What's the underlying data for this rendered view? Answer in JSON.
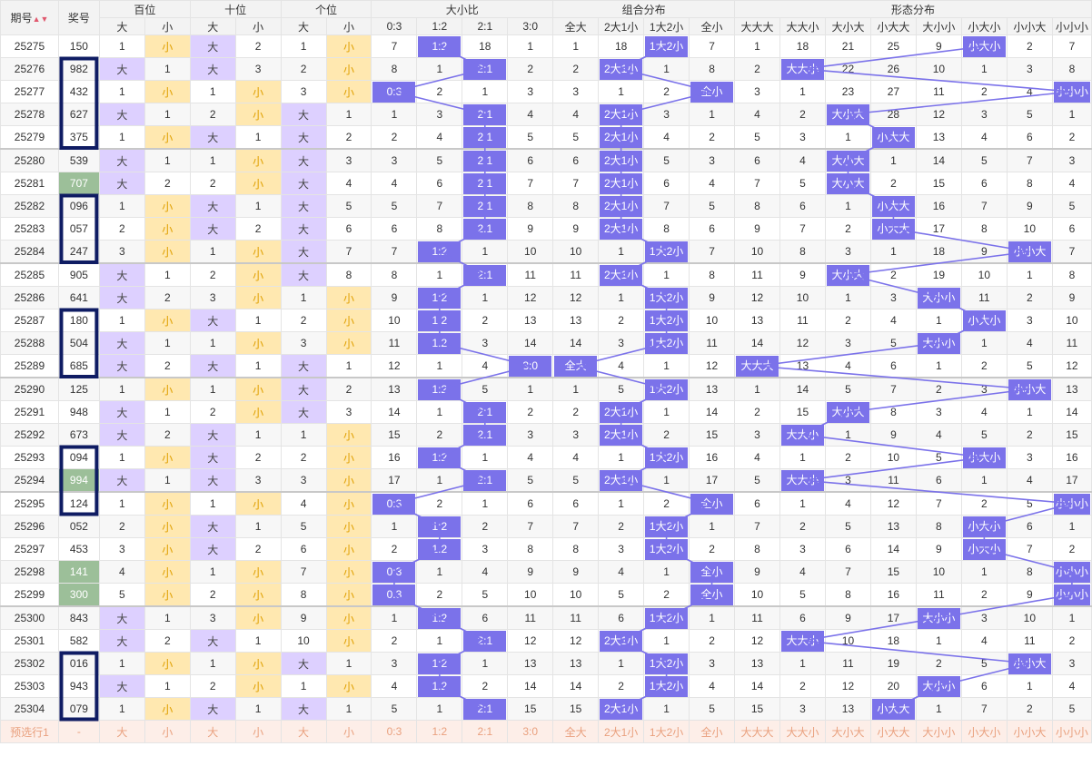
{
  "header": {
    "issue": "期号",
    "prize": "奖号",
    "hundreds": "百位",
    "tens": "十位",
    "units": "个位",
    "size_ratio": "大小比",
    "combo": "组合分布",
    "shape": "形态分布",
    "big": "大",
    "small": "小",
    "ratios": [
      "0:3",
      "1:2",
      "2:1",
      "3:0"
    ],
    "combos": [
      "全大",
      "2大1小",
      "1大2小",
      "全小"
    ],
    "shapes": [
      "大大大",
      "大大小",
      "大小大",
      "小大大",
      "大小小",
      "小大小",
      "小小大",
      "小小小"
    ]
  },
  "rows": [
    {
      "issue": "25275",
      "prize": "150",
      "h": "1",
      "t": "大",
      "u": "1",
      "ratio": "1:2",
      "combo": "1大2小",
      "shape": "小大小",
      "vals": [
        [
          1,
          "小"
        ],
        [
          "大",
          2
        ],
        [
          1,
          "小"
        ],
        [
          7,
          "1:2",
          18,
          1
        ],
        [
          1,
          18,
          "1大2小",
          7
        ],
        [
          1,
          18,
          21,
          25,
          9,
          "小大小",
          2,
          7
        ]
      ]
    },
    {
      "issue": "25276",
      "prize": "982",
      "vals": [
        [
          "大",
          1
        ],
        [
          "大",
          3
        ],
        [
          2,
          "小"
        ],
        [
          8,
          1,
          "2:1",
          2
        ],
        [
          2,
          "2大1小",
          1,
          8
        ],
        [
          2,
          "大大小",
          22,
          26,
          10,
          1,
          3,
          8
        ]
      ]
    },
    {
      "issue": "25277",
      "prize": "432",
      "vals": [
        [
          1,
          "小"
        ],
        [
          1,
          "小"
        ],
        [
          3,
          "小"
        ],
        [
          "0:3",
          2,
          1,
          3
        ],
        [
          3,
          1,
          2,
          "全小"
        ],
        [
          3,
          1,
          23,
          27,
          11,
          2,
          4,
          "小小小"
        ]
      ]
    },
    {
      "issue": "25278",
      "prize": "627",
      "vals": [
        [
          "大",
          1
        ],
        [
          2,
          "小"
        ],
        [
          "大",
          1
        ],
        [
          1,
          3,
          "2:1",
          4
        ],
        [
          4,
          "2大1小",
          3,
          1
        ],
        [
          4,
          2,
          "大小大",
          28,
          12,
          3,
          5,
          1
        ]
      ]
    },
    {
      "issue": "25279",
      "prize": "375",
      "vals": [
        [
          1,
          "小"
        ],
        [
          "大",
          1
        ],
        [
          "大",
          2
        ],
        [
          2,
          4,
          "2:1",
          5
        ],
        [
          5,
          "2大1小",
          4,
          2
        ],
        [
          5,
          3,
          1,
          "小大大",
          13,
          4,
          6,
          2
        ]
      ]
    },
    {
      "issue": "25280",
      "prize": "539",
      "vals": [
        [
          "大",
          1
        ],
        [
          1,
          "小"
        ],
        [
          "大",
          3
        ],
        [
          3,
          5,
          "2:1",
          6
        ],
        [
          6,
          "2大1小",
          5,
          3
        ],
        [
          6,
          4,
          "大小大",
          1,
          14,
          5,
          7,
          3
        ]
      ]
    },
    {
      "issue": "25281",
      "prize": "707",
      "vals": [
        [
          "大",
          2
        ],
        [
          2,
          "小"
        ],
        [
          "大",
          4
        ],
        [
          4,
          6,
          "2:1",
          7
        ],
        [
          7,
          "2大1小",
          6,
          4
        ],
        [
          7,
          5,
          "大小大",
          2,
          15,
          6,
          8,
          4
        ]
      ]
    },
    {
      "issue": "25282",
      "prize": "096",
      "vals": [
        [
          1,
          "小"
        ],
        [
          "大",
          1
        ],
        [
          "大",
          5
        ],
        [
          5,
          7,
          "2:1",
          8
        ],
        [
          8,
          "2大1小",
          7,
          5
        ],
        [
          8,
          6,
          1,
          "小大大",
          16,
          7,
          9,
          5
        ]
      ]
    },
    {
      "issue": "25283",
      "prize": "057",
      "vals": [
        [
          2,
          "小"
        ],
        [
          "大",
          2
        ],
        [
          "大",
          6
        ],
        [
          6,
          8,
          "2:1",
          9
        ],
        [
          9,
          "2大1小",
          8,
          6
        ],
        [
          9,
          7,
          2,
          "小大大",
          17,
          8,
          10,
          6
        ]
      ]
    },
    {
      "issue": "25284",
      "prize": "247",
      "vals": [
        [
          3,
          "小"
        ],
        [
          1,
          "小"
        ],
        [
          "大",
          7
        ],
        [
          7,
          "1:2",
          1,
          10
        ],
        [
          10,
          1,
          "1大2小",
          7
        ],
        [
          10,
          8,
          3,
          1,
          18,
          9,
          "小小大",
          7
        ]
      ]
    },
    {
      "issue": "25285",
      "prize": "905",
      "vals": [
        [
          "大",
          1
        ],
        [
          2,
          "小"
        ],
        [
          "大",
          8
        ],
        [
          8,
          1,
          "2:1",
          11
        ],
        [
          11,
          "2大1小",
          1,
          8
        ],
        [
          11,
          9,
          "大小大",
          2,
          19,
          10,
          1,
          8
        ]
      ]
    },
    {
      "issue": "25286",
      "prize": "641",
      "vals": [
        [
          "大",
          2
        ],
        [
          3,
          "小"
        ],
        [
          1,
          "小"
        ],
        [
          9,
          "1:2",
          1,
          12
        ],
        [
          12,
          1,
          "1大2小",
          9
        ],
        [
          12,
          10,
          1,
          3,
          "大小小",
          11,
          2,
          9
        ]
      ]
    },
    {
      "issue": "25287",
      "prize": "180",
      "vals": [
        [
          1,
          "小"
        ],
        [
          "大",
          1
        ],
        [
          2,
          "小"
        ],
        [
          10,
          "1:2",
          2,
          13
        ],
        [
          13,
          2,
          "1大2小",
          10
        ],
        [
          13,
          11,
          2,
          4,
          1,
          "小大小",
          3,
          10
        ]
      ]
    },
    {
      "issue": "25288",
      "prize": "504",
      "vals": [
        [
          "大",
          1
        ],
        [
          1,
          "小"
        ],
        [
          3,
          "小"
        ],
        [
          11,
          "1:2",
          3,
          14
        ],
        [
          14,
          3,
          "1大2小",
          11
        ],
        [
          14,
          12,
          3,
          5,
          "大小小",
          1,
          4,
          11
        ]
      ]
    },
    {
      "issue": "25289",
      "prize": "685",
      "vals": [
        [
          "大",
          2
        ],
        [
          "大",
          1
        ],
        [
          "大",
          1
        ],
        [
          12,
          1,
          4,
          "3:0"
        ],
        [
          "全大",
          4,
          1,
          12
        ],
        [
          "大大大",
          13,
          4,
          6,
          1,
          2,
          5,
          12
        ]
      ]
    },
    {
      "issue": "25290",
      "prize": "125",
      "vals": [
        [
          1,
          "小"
        ],
        [
          1,
          "小"
        ],
        [
          "大",
          2
        ],
        [
          13,
          "1:2",
          5,
          1
        ],
        [
          1,
          5,
          "1大2小",
          13
        ],
        [
          1,
          14,
          5,
          7,
          2,
          3,
          "小小大",
          13
        ]
      ]
    },
    {
      "issue": "25291",
      "prize": "948",
      "vals": [
        [
          "大",
          1
        ],
        [
          2,
          "小"
        ],
        [
          "大",
          3
        ],
        [
          14,
          1,
          "2:1",
          2
        ],
        [
          2,
          "2大1小",
          1,
          14
        ],
        [
          2,
          15,
          "大小大",
          8,
          3,
          4,
          1,
          14
        ]
      ]
    },
    {
      "issue": "25292",
      "prize": "673",
      "vals": [
        [
          "大",
          2
        ],
        [
          "大",
          1
        ],
        [
          1,
          "小"
        ],
        [
          15,
          2,
          "2:1",
          3
        ],
        [
          3,
          "2大1小",
          2,
          15
        ],
        [
          3,
          "大大小",
          1,
          9,
          4,
          5,
          2,
          15
        ]
      ]
    },
    {
      "issue": "25293",
      "prize": "094",
      "vals": [
        [
          1,
          "小"
        ],
        [
          "大",
          2
        ],
        [
          2,
          "小"
        ],
        [
          16,
          "1:2",
          1,
          4
        ],
        [
          4,
          1,
          "1大2小",
          16
        ],
        [
          4,
          1,
          2,
          10,
          5,
          "小大小",
          3,
          16
        ]
      ]
    },
    {
      "issue": "25294",
      "prize": "994",
      "vals": [
        [
          "大",
          1
        ],
        [
          "大",
          3
        ],
        [
          3,
          "小"
        ],
        [
          17,
          1,
          "2:1",
          5
        ],
        [
          5,
          "2大1小",
          1,
          17
        ],
        [
          5,
          "大大小",
          3,
          11,
          6,
          1,
          4,
          17
        ]
      ]
    },
    {
      "issue": "25295",
      "prize": "124",
      "vals": [
        [
          1,
          "小"
        ],
        [
          1,
          "小"
        ],
        [
          4,
          "小"
        ],
        [
          "0:3",
          2,
          1,
          6
        ],
        [
          6,
          1,
          2,
          "全小"
        ],
        [
          6,
          1,
          4,
          12,
          7,
          2,
          5,
          "小小小"
        ]
      ]
    },
    {
      "issue": "25296",
      "prize": "052",
      "vals": [
        [
          2,
          "小"
        ],
        [
          "大",
          1
        ],
        [
          5,
          "小"
        ],
        [
          1,
          "1:2",
          2,
          7
        ],
        [
          7,
          2,
          "1大2小",
          1
        ],
        [
          7,
          2,
          5,
          13,
          8,
          "小大小",
          6,
          1
        ]
      ]
    },
    {
      "issue": "25297",
      "prize": "453",
      "vals": [
        [
          3,
          "小"
        ],
        [
          "大",
          2
        ],
        [
          6,
          "小"
        ],
        [
          2,
          "1:2",
          3,
          8
        ],
        [
          8,
          3,
          "1大2小",
          2
        ],
        [
          8,
          3,
          6,
          14,
          9,
          "小大小",
          7,
          2
        ]
      ]
    },
    {
      "issue": "25298",
      "prize": "141",
      "vals": [
        [
          4,
          "小"
        ],
        [
          1,
          "小"
        ],
        [
          7,
          "小"
        ],
        [
          "0:3",
          1,
          4,
          9
        ],
        [
          9,
          4,
          1,
          "全小"
        ],
        [
          9,
          4,
          7,
          15,
          10,
          1,
          8,
          "小小小"
        ]
      ]
    },
    {
      "issue": "25299",
      "prize": "300",
      "vals": [
        [
          5,
          "小"
        ],
        [
          2,
          "小"
        ],
        [
          8,
          "小"
        ],
        [
          "0:3",
          2,
          5,
          10
        ],
        [
          10,
          5,
          2,
          "全小"
        ],
        [
          10,
          5,
          8,
          16,
          11,
          2,
          9,
          "小小小"
        ]
      ]
    },
    {
      "issue": "25300",
      "prize": "843",
      "vals": [
        [
          "大",
          1
        ],
        [
          3,
          "小"
        ],
        [
          9,
          "小"
        ],
        [
          1,
          "1:2",
          6,
          11
        ],
        [
          11,
          6,
          "1大2小",
          1
        ],
        [
          11,
          6,
          9,
          17,
          "大小小",
          3,
          10,
          1
        ]
      ]
    },
    {
      "issue": "25301",
      "prize": "582",
      "vals": [
        [
          "大",
          2
        ],
        [
          "大",
          1
        ],
        [
          10,
          "小"
        ],
        [
          2,
          1,
          "2:1",
          12
        ],
        [
          12,
          "2大1小",
          1,
          2
        ],
        [
          12,
          "大大小",
          10,
          18,
          1,
          4,
          11,
          2
        ]
      ]
    },
    {
      "issue": "25302",
      "prize": "016",
      "vals": [
        [
          1,
          "小"
        ],
        [
          1,
          "小"
        ],
        [
          "大",
          1
        ],
        [
          3,
          "1:2",
          1,
          13
        ],
        [
          13,
          1,
          "1大2小",
          3
        ],
        [
          13,
          1,
          11,
          19,
          2,
          5,
          "小小大",
          3
        ]
      ]
    },
    {
      "issue": "25303",
      "prize": "943",
      "vals": [
        [
          "大",
          1
        ],
        [
          2,
          "小"
        ],
        [
          1,
          "小"
        ],
        [
          4,
          "1:2",
          2,
          14
        ],
        [
          14,
          2,
          "1大2小",
          4
        ],
        [
          14,
          2,
          12,
          20,
          "大小小",
          6,
          1,
          4
        ]
      ]
    },
    {
      "issue": "25304",
      "prize": "079",
      "vals": [
        [
          1,
          "小"
        ],
        [
          "大",
          1
        ],
        [
          "大",
          1
        ],
        [
          5,
          1,
          "2:1",
          15
        ],
        [
          15,
          "2大1小",
          1,
          5
        ],
        [
          15,
          3,
          13,
          "小大大",
          1,
          7,
          2,
          5
        ]
      ]
    }
  ],
  "green_prizes": [
    "707",
    "994",
    "141",
    "300"
  ],
  "boxed_groups": [
    [
      1,
      4
    ],
    [
      7,
      9
    ],
    [
      12,
      14
    ],
    [
      18,
      20
    ],
    [
      27,
      29
    ]
  ],
  "preselect": {
    "label": "预选行1",
    "prize": "-"
  },
  "colors": {
    "blue_cell": "#7b72ea",
    "big_bg": "#ddd0ff",
    "small_bg": "#ffe8b0",
    "green_prize": "#9cbf99",
    "box": "#0f1c63",
    "line": "#7b72ea"
  }
}
